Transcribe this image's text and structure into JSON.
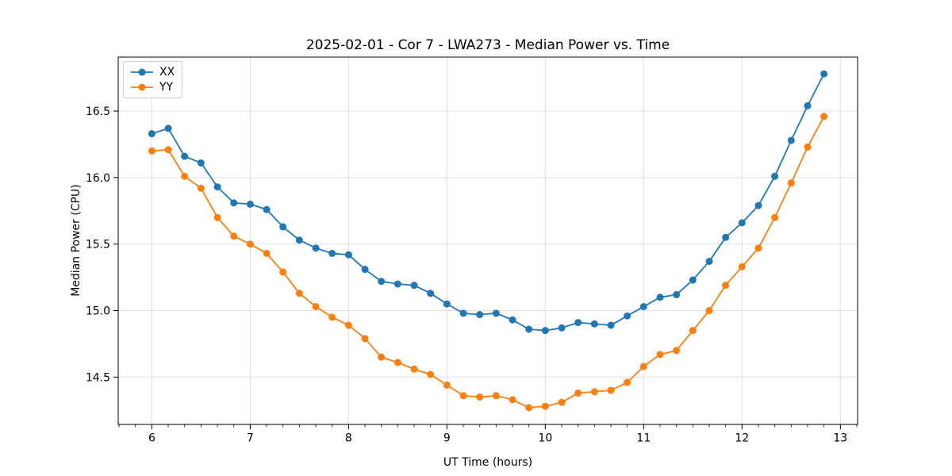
{
  "chart_data": {
    "type": "line",
    "title": "2025-02-01 - Cor 7 - LWA273 - Median Power vs. Time",
    "xlabel": "UT Time (hours)",
    "ylabel": "Median Power (CPU)",
    "x": [
      6.0,
      6.167,
      6.333,
      6.5,
      6.667,
      6.833,
      7.0,
      7.167,
      7.333,
      7.5,
      7.667,
      7.833,
      8.0,
      8.167,
      8.333,
      8.5,
      8.667,
      8.833,
      9.0,
      9.167,
      9.333,
      9.5,
      9.667,
      9.833,
      10.0,
      10.167,
      10.333,
      10.5,
      10.667,
      10.833,
      11.0,
      11.167,
      11.333,
      11.5,
      11.667,
      11.833,
      12.0,
      12.167,
      12.333,
      12.5,
      12.667,
      12.833
    ],
    "series": [
      {
        "name": "XX",
        "color": "#1f77b4",
        "values": [
          16.33,
          16.37,
          16.16,
          16.11,
          15.93,
          15.81,
          15.8,
          15.76,
          15.63,
          15.53,
          15.47,
          15.43,
          15.42,
          15.31,
          15.22,
          15.2,
          15.19,
          15.13,
          15.05,
          14.98,
          14.97,
          14.98,
          14.93,
          14.86,
          14.85,
          14.87,
          14.91,
          14.9,
          14.89,
          14.96,
          15.03,
          15.1,
          15.12,
          15.23,
          15.37,
          15.55,
          15.66,
          15.79,
          16.01,
          16.28,
          16.54,
          16.78
        ]
      },
      {
        "name": "YY",
        "color": "#ff7f0e",
        "values": [
          16.2,
          16.21,
          16.01,
          15.92,
          15.7,
          15.56,
          15.5,
          15.43,
          15.29,
          15.13,
          15.03,
          14.95,
          14.89,
          14.79,
          14.65,
          14.61,
          14.56,
          14.52,
          14.44,
          14.36,
          14.35,
          14.36,
          14.33,
          14.27,
          14.28,
          14.31,
          14.38,
          14.39,
          14.4,
          14.46,
          14.58,
          14.67,
          14.7,
          14.85,
          15.0,
          15.19,
          15.33,
          15.47,
          15.7,
          15.96,
          16.23,
          16.46
        ]
      }
    ],
    "xlim": [
      5.658,
      13.175
    ],
    "ylim": [
      14.144,
      16.906
    ],
    "xticks": [
      6,
      7,
      8,
      9,
      10,
      11,
      12,
      13
    ],
    "yticks": [
      14.5,
      15.0,
      15.5,
      16.0,
      16.5
    ],
    "x_minor_tick_step": 0.166667,
    "grid": true,
    "legend_position": "upper left",
    "colors": {
      "grid": "#e0e0e0",
      "spine": "#000000",
      "tick": "#000000",
      "text": "#000000",
      "background": "#ffffff"
    }
  }
}
